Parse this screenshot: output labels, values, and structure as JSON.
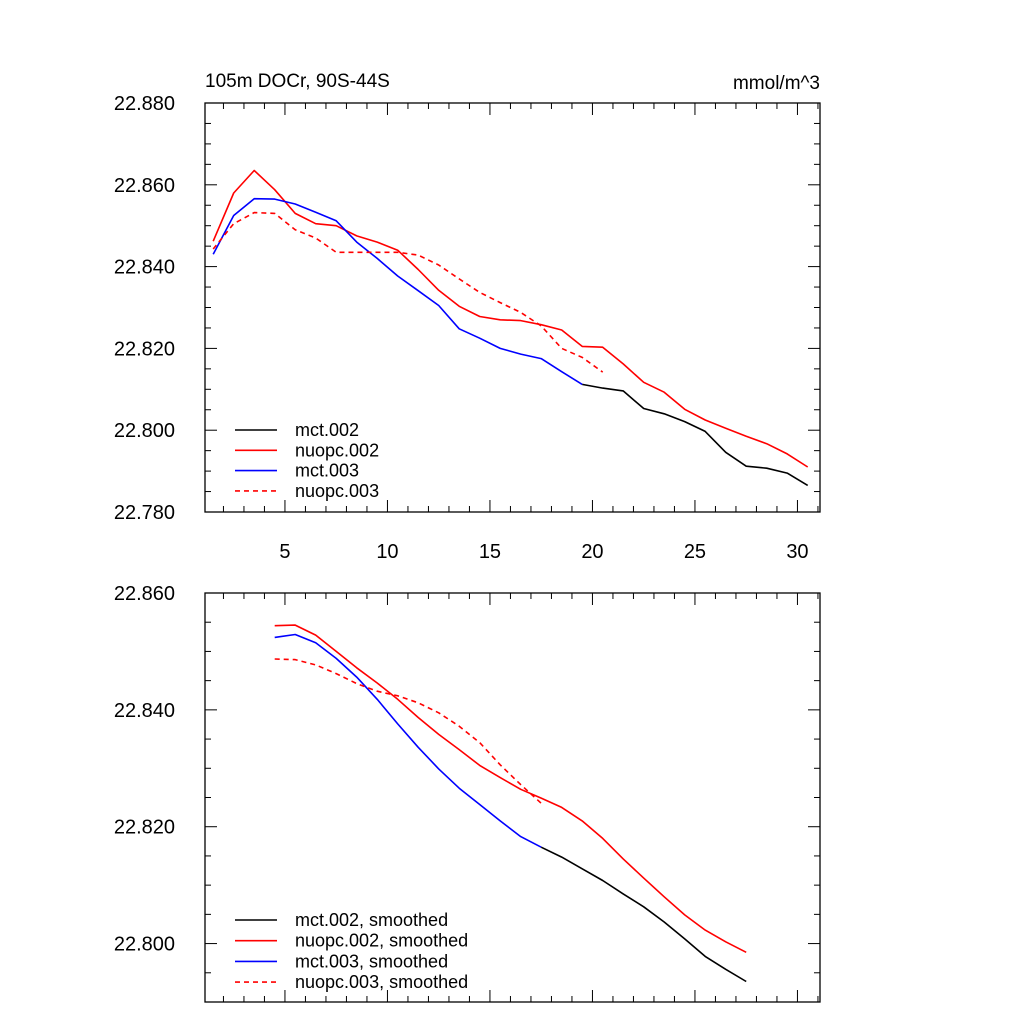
{
  "figure": {
    "title_left": "105m DOCr, 90S-44S",
    "title_right": "mmol/m^3"
  },
  "chart_data": [
    {
      "type": "line",
      "title": "105m DOCr, 90S-44S",
      "units": "mmol/m^3",
      "xlim": [
        1.1,
        31.1
      ],
      "ylim": [
        22.78,
        22.88
      ],
      "x_ticks": [
        5,
        10,
        15,
        20,
        25,
        30
      ],
      "x_tick_labels": [
        "5",
        "10",
        "15",
        "20",
        "25",
        "30"
      ],
      "y_ticks": [
        22.78,
        22.8,
        22.82,
        22.84,
        22.86,
        22.88
      ],
      "y_tick_labels": [
        "22.780",
        "22.800",
        "22.820",
        "22.840",
        "22.860",
        "22.880"
      ],
      "legend_position": "bottom-left",
      "series": [
        {
          "name": "mct.002",
          "color": "#000000",
          "dash": "solid",
          "x": [
            19.5,
            20.5,
            21.5,
            22.5,
            23.5,
            24.5,
            25.5,
            26.5,
            27.5,
            28.5,
            29.5,
            30.5
          ],
          "y": [
            22.8112,
            22.8103,
            22.8096,
            22.8053,
            22.804,
            22.8021,
            22.7997,
            22.7946,
            22.7912,
            22.7907,
            22.7895,
            22.7865
          ]
        },
        {
          "name": "nuopc.002",
          "color": "#ff0000",
          "dash": "solid",
          "x": [
            1.5,
            2.5,
            3.5,
            4.5,
            5.5,
            6.5,
            7.5,
            8.5,
            9.5,
            10.5,
            11.5,
            12.5,
            13.5,
            14.5,
            15.5,
            16.5,
            17.5,
            18.5,
            19.5,
            20.5,
            21.5,
            22.5,
            23.5,
            24.5,
            25.5,
            26.5,
            27.5,
            28.5,
            29.5,
            30.5
          ],
          "y": [
            22.8462,
            22.858,
            22.8635,
            22.8588,
            22.853,
            22.8505,
            22.85,
            22.8475,
            22.846,
            22.844,
            22.8393,
            22.8342,
            22.8303,
            22.8278,
            22.827,
            22.8268,
            22.8258,
            22.8245,
            22.8205,
            22.8203,
            22.8162,
            22.8117,
            22.8093,
            22.8051,
            22.8025,
            22.8005,
            22.7985,
            22.7967,
            22.7942,
            22.791
          ]
        },
        {
          "name": "mct.003",
          "color": "#0000ff",
          "dash": "solid",
          "x": [
            1.5,
            2.5,
            3.5,
            4.5,
            5.5,
            6.5,
            7.5,
            8.5,
            9.5,
            10.5,
            11.5,
            12.5,
            13.5,
            14.5,
            15.5,
            16.5,
            17.5,
            18.5,
            19.5
          ],
          "y": [
            22.843,
            22.8525,
            22.8566,
            22.8565,
            22.8553,
            22.8533,
            22.8512,
            22.846,
            22.842,
            22.8377,
            22.8341,
            22.8305,
            22.8248,
            22.8225,
            22.82,
            22.8186,
            22.8175,
            22.8143,
            22.8112
          ]
        },
        {
          "name": "nuopc.003",
          "color": "#ff0000",
          "dash": "dashed",
          "x": [
            1.5,
            2.5,
            3.5,
            4.5,
            5.5,
            6.5,
            7.5,
            8.5,
            9.5,
            10.5,
            11.5,
            12.5,
            13.5,
            14.5,
            15.5,
            16.5,
            17.5,
            18.5,
            19.5,
            20.5
          ],
          "y": [
            22.8443,
            22.8505,
            22.8532,
            22.853,
            22.849,
            22.847,
            22.8435,
            22.8435,
            22.8435,
            22.8435,
            22.8428,
            22.8404,
            22.837,
            22.8337,
            22.8312,
            22.8288,
            22.8255,
            22.82,
            22.8178,
            22.8142
          ]
        }
      ]
    },
    {
      "type": "line",
      "xlim": [
        1.1,
        31.1
      ],
      "ylim": [
        22.79,
        22.86
      ],
      "x_ticks": [
        5,
        10,
        15,
        20,
        25,
        30
      ],
      "x_tick_labels": [
        "",
        "",
        "",
        "",
        "",
        ""
      ],
      "y_ticks": [
        22.8,
        22.82,
        22.84,
        22.86
      ],
      "y_tick_labels": [
        "22.800",
        "22.820",
        "22.840",
        "22.860"
      ],
      "legend_position": "bottom-left",
      "series": [
        {
          "name": "mct.002, smoothed",
          "color": "#000000",
          "dash": "solid",
          "x": [
            17.5,
            18.5,
            19.5,
            20.5,
            21.5,
            22.5,
            23.5,
            24.5,
            25.5,
            26.5,
            27.5
          ],
          "y": [
            22.8165,
            22.8148,
            22.8128,
            22.8108,
            22.8085,
            22.8063,
            22.8037,
            22.8008,
            22.7978,
            22.7956,
            22.7935
          ]
        },
        {
          "name": "nuopc.002, smoothed",
          "color": "#ff0000",
          "dash": "solid",
          "x": [
            4.5,
            5.5,
            6.5,
            7.5,
            8.5,
            9.5,
            10.5,
            11.5,
            12.5,
            13.5,
            14.5,
            15.5,
            16.5,
            17.5,
            18.5,
            19.5,
            20.5,
            21.5,
            22.5,
            23.5,
            24.5,
            25.5,
            26.5,
            27.5
          ],
          "y": [
            22.8544,
            22.8545,
            22.8528,
            22.85,
            22.8472,
            22.8446,
            22.8418,
            22.8387,
            22.8358,
            22.8332,
            22.8305,
            22.8284,
            22.8264,
            22.8249,
            22.8233,
            22.821,
            22.818,
            22.8145,
            22.8112,
            22.808,
            22.8049,
            22.8023,
            22.8003,
            22.7985
          ]
        },
        {
          "name": "mct.003, smoothed",
          "color": "#0000ff",
          "dash": "solid",
          "x": [
            4.5,
            5.5,
            6.5,
            7.5,
            8.5,
            9.5,
            10.5,
            11.5,
            12.5,
            13.5,
            14.5,
            15.5,
            16.5,
            17.5
          ],
          "y": [
            22.8524,
            22.8529,
            22.8515,
            22.8488,
            22.8456,
            22.8418,
            22.8376,
            22.8336,
            22.8299,
            22.8266,
            22.8238,
            22.821,
            22.8183,
            22.8165
          ]
        },
        {
          "name": "nuopc.003, smoothed",
          "color": "#ff0000",
          "dash": "dashed",
          "x": [
            4.5,
            5.5,
            6.5,
            7.5,
            8.5,
            9.5,
            10.5,
            11.5,
            12.5,
            13.5,
            14.5,
            15.5,
            16.5,
            17.5
          ],
          "y": [
            22.8487,
            22.8486,
            22.8477,
            22.8462,
            22.8445,
            22.8432,
            22.8424,
            22.8412,
            22.8395,
            22.8372,
            22.8344,
            22.8306,
            22.8272,
            22.824
          ]
        }
      ]
    }
  ]
}
